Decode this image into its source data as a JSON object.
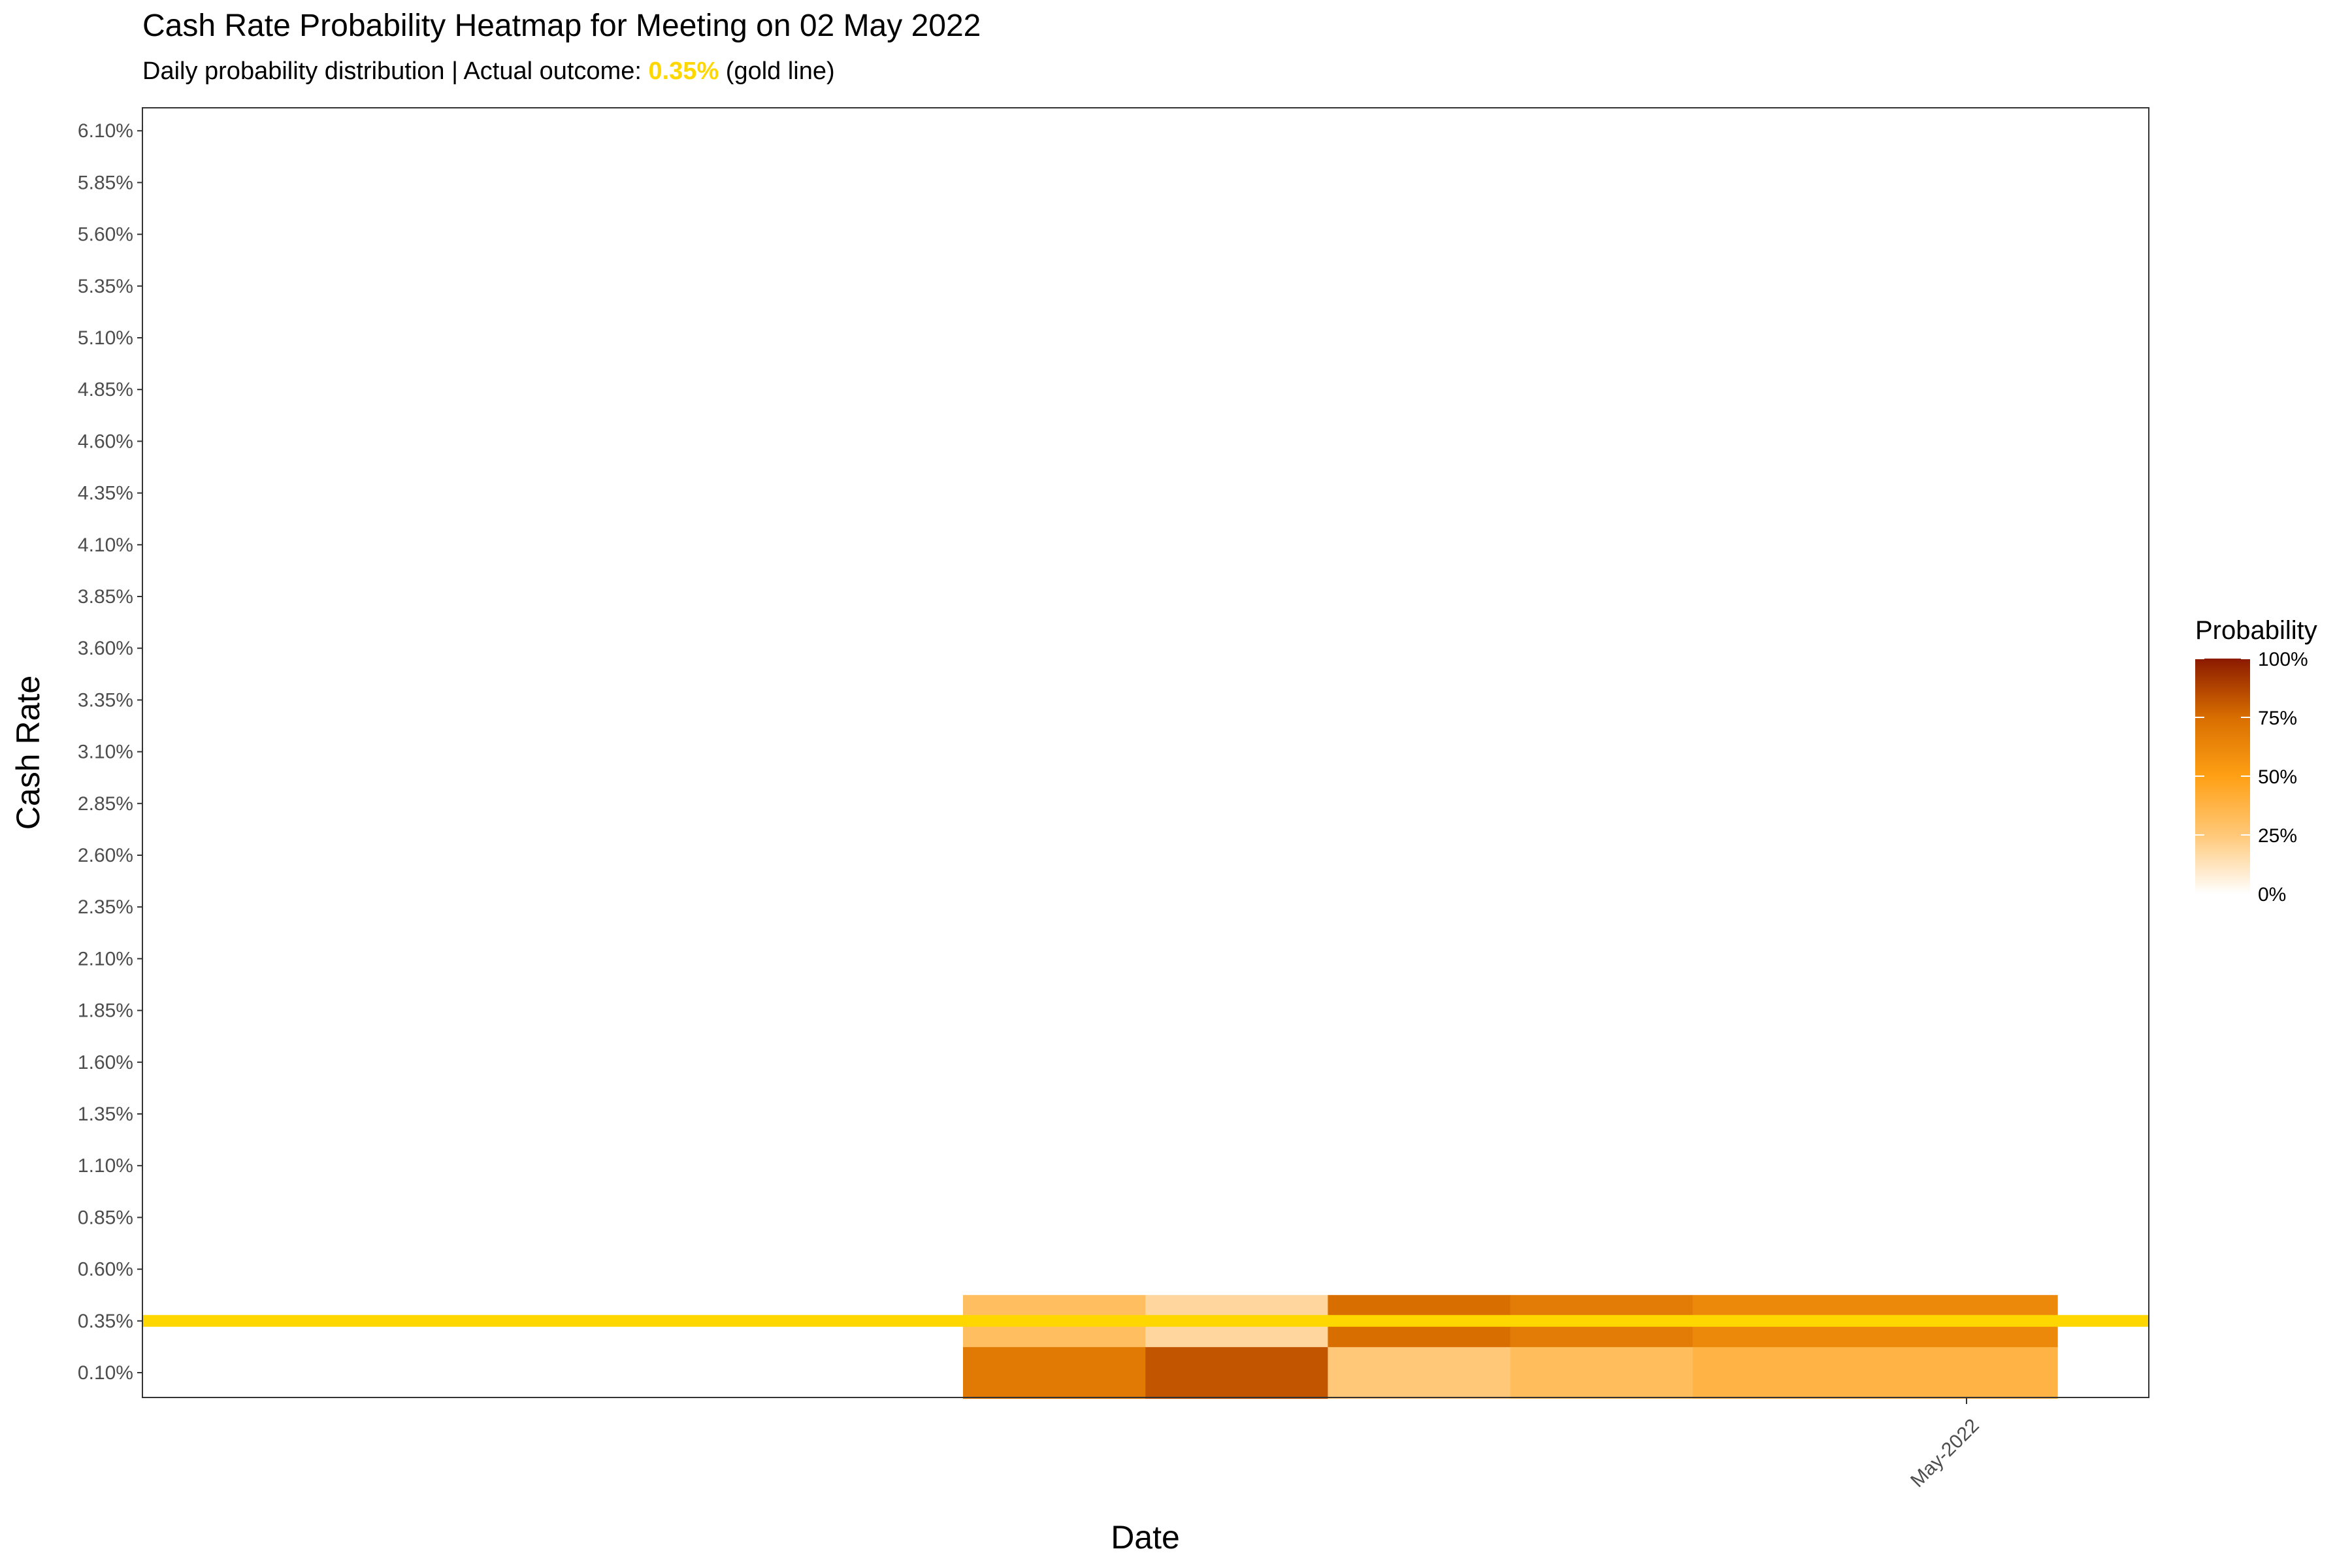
{
  "chart_data": {
    "type": "heatmap",
    "title": "Cash Rate Probability Heatmap for Meeting on 02 May 2022",
    "subtitle": {
      "prefix": "Daily probability distribution | Actual outcome: ",
      "highlight": "0.35%",
      "suffix": " (gold line)"
    },
    "xlabel": "Date",
    "ylabel": "Cash Rate",
    "x_tick_labels": [
      "May-2022"
    ],
    "y_tick_labels": [
      "0.10%",
      "0.35%",
      "0.60%",
      "0.85%",
      "1.10%",
      "1.35%",
      "1.60%",
      "1.85%",
      "2.10%",
      "2.35%",
      "2.60%",
      "2.85%",
      "3.10%",
      "3.35%",
      "3.60%",
      "3.85%",
      "4.10%",
      "4.35%",
      "4.60%",
      "4.85%",
      "5.10%",
      "5.35%",
      "5.60%",
      "5.85%",
      "6.10%"
    ],
    "actual_outcome": 0.35,
    "actual_outcome_color": "#FFD700",
    "columns": 6,
    "cells": [
      {
        "col": 0,
        "rate": 0.1,
        "probability": 0.69
      },
      {
        "col": 0,
        "rate": 0.35,
        "probability": 0.31
      },
      {
        "col": 1,
        "rate": 0.1,
        "probability": 0.82
      },
      {
        "col": 1,
        "rate": 0.35,
        "probability": 0.18
      },
      {
        "col": 2,
        "rate": 0.1,
        "probability": 0.25
      },
      {
        "col": 2,
        "rate": 0.35,
        "probability": 0.75
      },
      {
        "col": 3,
        "rate": 0.1,
        "probability": 0.32
      },
      {
        "col": 3,
        "rate": 0.35,
        "probability": 0.68
      },
      {
        "col": 4,
        "rate": 0.1,
        "probability": 0.38
      },
      {
        "col": 4,
        "rate": 0.35,
        "probability": 0.62
      },
      {
        "col": 5,
        "rate": 0.1,
        "probability": 0.38
      },
      {
        "col": 5,
        "rate": 0.35,
        "probability": 0.62
      }
    ],
    "legend": {
      "title": "Probability",
      "labels": [
        "100%",
        "75%",
        "50%",
        "25%",
        "0%"
      ],
      "colors": [
        "#FFFFFF",
        "#FFA832",
        "#FF9900",
        "#D86E00",
        "#8B1A00"
      ]
    },
    "grid": false,
    "legend_position": "right"
  }
}
